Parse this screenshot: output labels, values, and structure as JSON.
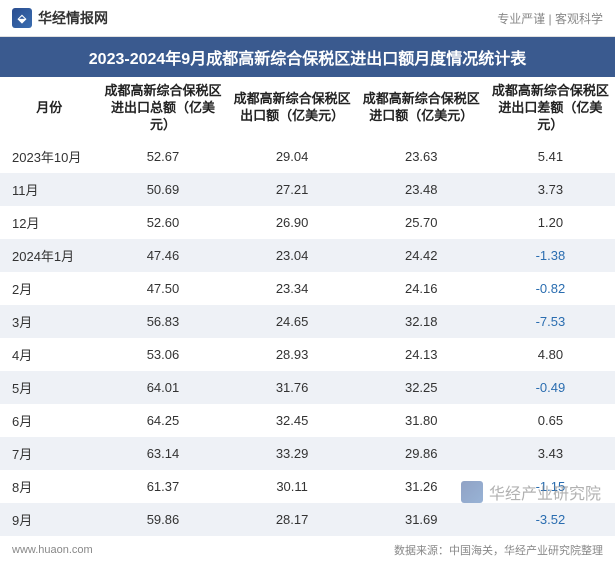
{
  "header": {
    "brand_name": "华经情报网",
    "slogan": "专业严谨 | 客观科学"
  },
  "title": "2023-2024年9月成都高新综合保税区进出口额月度情况统计表",
  "table": {
    "columns": [
      "月份",
      "成都高新综合保税区进出口总额（亿美元）",
      "成都高新综合保税区出口额（亿美元）",
      "成都高新综合保税区进口额（亿美元）",
      "成都高新综合保税区进出口差额（亿美元）"
    ],
    "rows": [
      {
        "month": "2023年10月",
        "total": "52.67",
        "export": "29.04",
        "import": "23.63",
        "diff": "5.41",
        "neg": false
      },
      {
        "month": "11月",
        "total": "50.69",
        "export": "27.21",
        "import": "23.48",
        "diff": "3.73",
        "neg": false
      },
      {
        "month": "12月",
        "total": "52.60",
        "export": "26.90",
        "import": "25.70",
        "diff": "1.20",
        "neg": false
      },
      {
        "month": "2024年1月",
        "total": "47.46",
        "export": "23.04",
        "import": "24.42",
        "diff": "-1.38",
        "neg": true
      },
      {
        "month": "2月",
        "total": "47.50",
        "export": "23.34",
        "import": "24.16",
        "diff": "-0.82",
        "neg": true
      },
      {
        "month": "3月",
        "total": "56.83",
        "export": "24.65",
        "import": "32.18",
        "diff": "-7.53",
        "neg": true
      },
      {
        "month": "4月",
        "total": "53.06",
        "export": "28.93",
        "import": "24.13",
        "diff": "4.80",
        "neg": false
      },
      {
        "month": "5月",
        "total": "64.01",
        "export": "31.76",
        "import": "32.25",
        "diff": "-0.49",
        "neg": true
      },
      {
        "month": "6月",
        "total": "64.25",
        "export": "32.45",
        "import": "31.80",
        "diff": "0.65",
        "neg": false
      },
      {
        "month": "7月",
        "total": "63.14",
        "export": "33.29",
        "import": "29.86",
        "diff": "3.43",
        "neg": false
      },
      {
        "month": "8月",
        "total": "61.37",
        "export": "30.11",
        "import": "31.26",
        "diff": "-1.15",
        "neg": true
      },
      {
        "month": "9月",
        "total": "59.86",
        "export": "28.17",
        "import": "31.69",
        "diff": "-3.52",
        "neg": true
      }
    ]
  },
  "footer": {
    "url": "www.huaon.com",
    "source": "数据来源：中国海关，华经产业研究院整理"
  },
  "watermark": "华经产业研究院",
  "styling": {
    "title_bg": "#3a5a8f",
    "title_color": "#ffffff",
    "row_alt_bg": "#eef1f6",
    "neg_color": "#2a6db0",
    "text_color": "#333333",
    "header_text_color": "#222222",
    "footer_color": "#888888",
    "font_family": "Microsoft YaHei",
    "title_fontsize": 16,
    "body_fontsize": 13,
    "footer_fontsize": 11
  }
}
